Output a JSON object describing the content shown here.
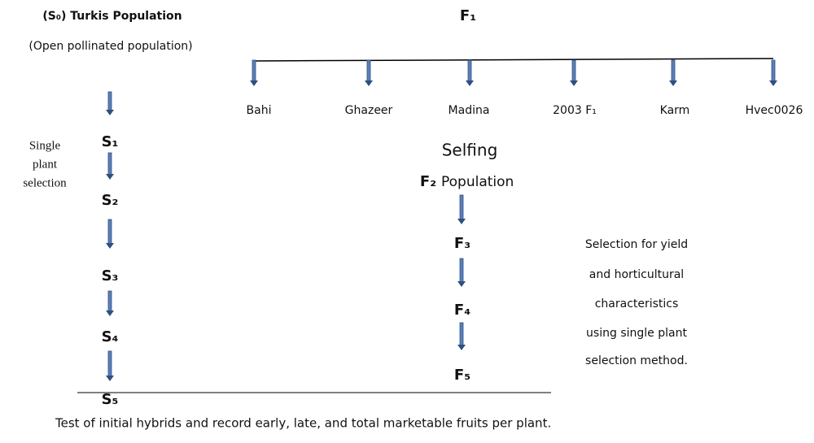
{
  "left": {
    "title": "(S₀) Turkis Population",
    "subtitle": "(Open pollinated population)",
    "note": [
      "Single",
      "plant",
      "selection"
    ],
    "stages": [
      "S₁",
      "S₂",
      "S₃",
      "S₄",
      "S₅"
    ]
  },
  "right": {
    "header": "F₁",
    "parents": [
      "Bahi",
      "Ghazeer",
      "Madina",
      "2003 F₁",
      "Karm",
      "Hvec0026"
    ],
    "selfing": "Selfing",
    "f2_label": "F₂",
    "f2_word": "Population",
    "stages": [
      "F₃",
      "F₄",
      "F₅"
    ],
    "note": [
      "Selection for yield",
      "and horticultural",
      "characteristics",
      "using single plant",
      "selection method."
    ]
  },
  "footer": "Test of initial hybrids and record early, late, and total marketable fruits per plant."
}
